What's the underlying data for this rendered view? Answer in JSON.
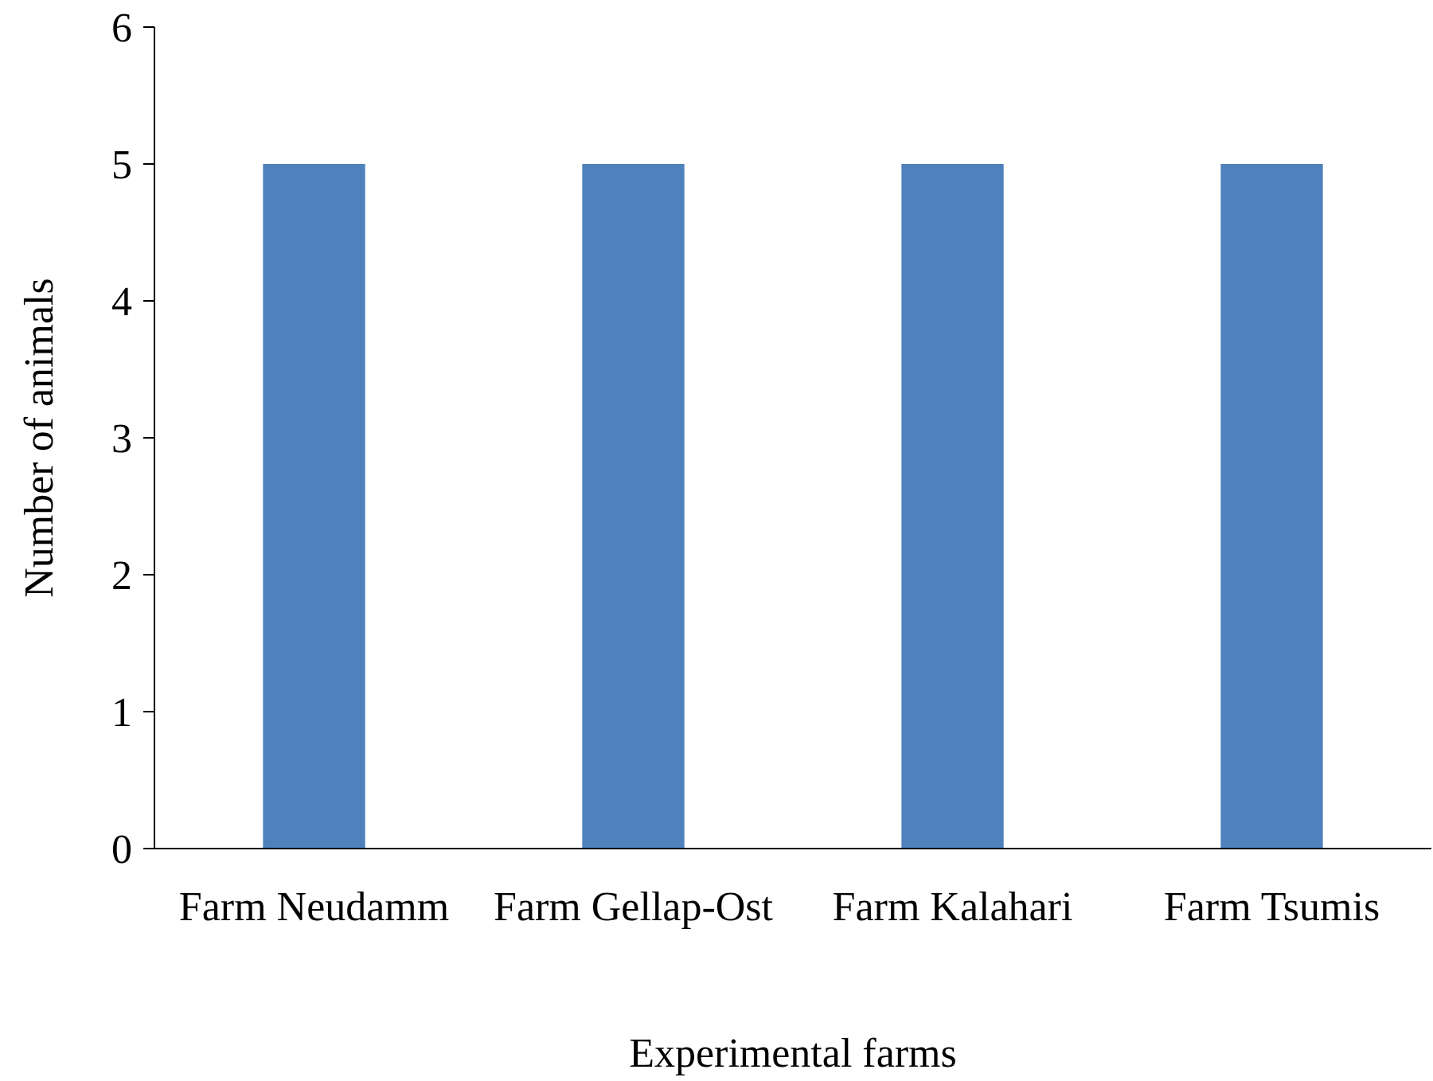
{
  "chart_data": {
    "type": "bar",
    "xlabel": "Experimental farms",
    "ylabel": "Number of animals",
    "categories": [
      "Farm Neudamm",
      "Farm Gellap-Ost",
      "Farm Kalahari",
      "Farm Tsumis"
    ],
    "values": [
      5,
      5,
      5,
      5
    ],
    "color": "#4f81bd",
    "ylim": [
      0,
      6
    ],
    "yticks": [
      0,
      1,
      2,
      3,
      4,
      5,
      6
    ],
    "grid": false
  }
}
